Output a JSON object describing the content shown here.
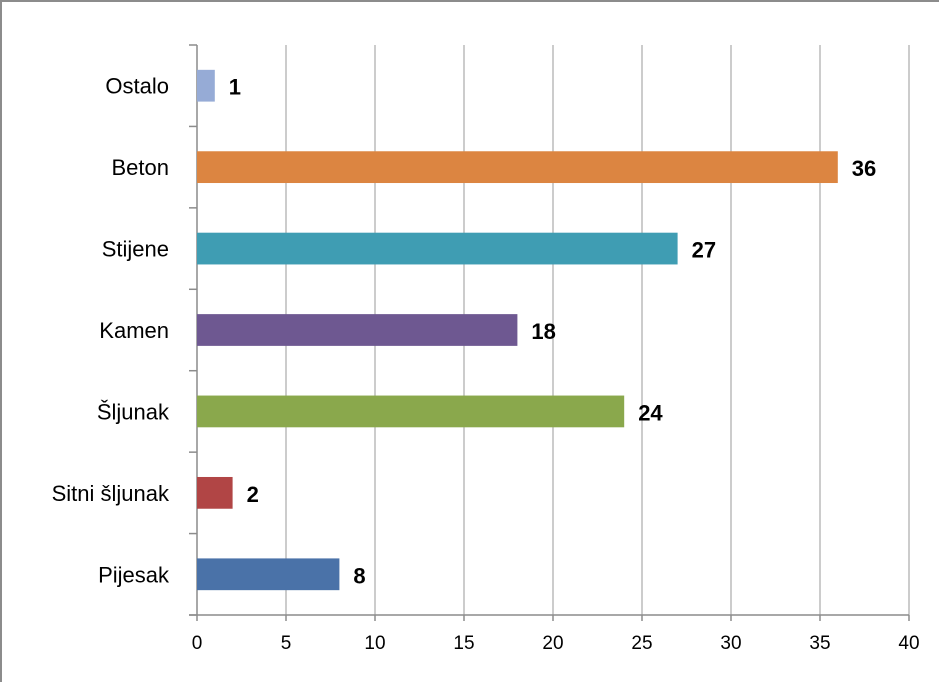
{
  "chart_data": {
    "type": "bar",
    "orientation": "horizontal",
    "categories": [
      "Pijesak",
      "Sitni šljunak",
      "Šljunak",
      "Kamen",
      "Stijene",
      "Beton",
      "Ostalo"
    ],
    "values": [
      8,
      2,
      24,
      18,
      27,
      36,
      1
    ],
    "colors": [
      "#4a72a8",
      "#b14545",
      "#8aa84c",
      "#6e5891",
      "#3f9db3",
      "#dc8541",
      "#96abd6"
    ],
    "xlim": [
      0,
      40
    ],
    "xticks": [
      0,
      5,
      10,
      15,
      20,
      25,
      30,
      35,
      40
    ],
    "grid": "vertical",
    "legend": "none",
    "data_labels": [
      "8",
      "2",
      "24",
      "18",
      "27",
      "36",
      "1"
    ]
  }
}
